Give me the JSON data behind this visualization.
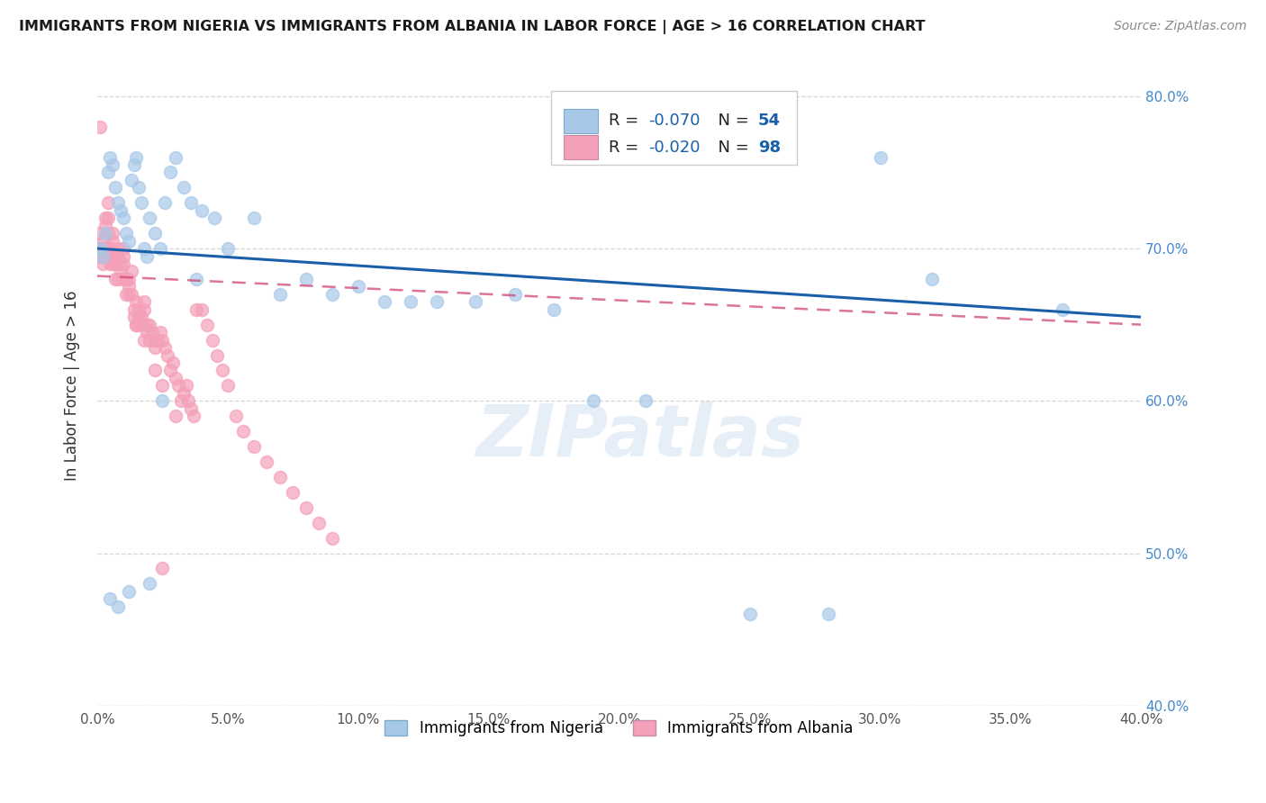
{
  "title": "IMMIGRANTS FROM NIGERIA VS IMMIGRANTS FROM ALBANIA IN LABOR FORCE | AGE > 16 CORRELATION CHART",
  "source_text": "Source: ZipAtlas.com",
  "ylabel": "In Labor Force | Age > 16",
  "xlim": [
    0.0,
    0.4
  ],
  "ylim": [
    0.4,
    0.82
  ],
  "xticks": [
    0.0,
    0.05,
    0.1,
    0.15,
    0.2,
    0.25,
    0.3,
    0.35,
    0.4
  ],
  "yticks": [
    0.4,
    0.5,
    0.6,
    0.7,
    0.8
  ],
  "ytick_labels_right": [
    "40.0%",
    "50.0%",
    "60.0%",
    "70.0%",
    "80.0%"
  ],
  "nigeria_color": "#a8c8e8",
  "albania_color": "#f4a0b8",
  "nigeria_R": -0.07,
  "nigeria_N": 54,
  "albania_R": -0.02,
  "albania_N": 98,
  "nigeria_line_color": "#1a5faa",
  "albania_line_color": "#d04878",
  "watermark_text": "ZIPatlas",
  "nigeria_line_y0": 0.7,
  "nigeria_line_y1": 0.655,
  "albania_line_y0": 0.682,
  "albania_line_y1": 0.65,
  "nigeria_x": [
    0.001,
    0.002,
    0.003,
    0.004,
    0.005,
    0.006,
    0.007,
    0.008,
    0.009,
    0.01,
    0.011,
    0.012,
    0.013,
    0.014,
    0.015,
    0.016,
    0.017,
    0.018,
    0.019,
    0.02,
    0.022,
    0.024,
    0.026,
    0.028,
    0.03,
    0.033,
    0.036,
    0.04,
    0.045,
    0.05,
    0.06,
    0.07,
    0.08,
    0.09,
    0.1,
    0.11,
    0.12,
    0.13,
    0.145,
    0.16,
    0.175,
    0.19,
    0.21,
    0.25,
    0.28,
    0.3,
    0.32,
    0.37,
    0.005,
    0.008,
    0.012,
    0.02,
    0.025,
    0.038
  ],
  "nigeria_y": [
    0.7,
    0.695,
    0.71,
    0.75,
    0.76,
    0.755,
    0.74,
    0.73,
    0.725,
    0.72,
    0.71,
    0.705,
    0.745,
    0.755,
    0.76,
    0.74,
    0.73,
    0.7,
    0.695,
    0.72,
    0.71,
    0.7,
    0.73,
    0.75,
    0.76,
    0.74,
    0.73,
    0.725,
    0.72,
    0.7,
    0.72,
    0.67,
    0.68,
    0.67,
    0.675,
    0.665,
    0.665,
    0.665,
    0.665,
    0.67,
    0.66,
    0.6,
    0.6,
    0.46,
    0.46,
    0.76,
    0.68,
    0.66,
    0.47,
    0.465,
    0.475,
    0.48,
    0.6,
    0.68
  ],
  "albania_x": [
    0.001,
    0.001,
    0.001,
    0.002,
    0.002,
    0.002,
    0.002,
    0.003,
    0.003,
    0.003,
    0.003,
    0.004,
    0.004,
    0.004,
    0.005,
    0.005,
    0.005,
    0.006,
    0.006,
    0.006,
    0.007,
    0.007,
    0.007,
    0.008,
    0.008,
    0.008,
    0.009,
    0.009,
    0.01,
    0.01,
    0.01,
    0.011,
    0.011,
    0.012,
    0.012,
    0.013,
    0.013,
    0.014,
    0.014,
    0.015,
    0.015,
    0.016,
    0.016,
    0.017,
    0.017,
    0.018,
    0.018,
    0.019,
    0.019,
    0.02,
    0.02,
    0.021,
    0.022,
    0.022,
    0.023,
    0.024,
    0.025,
    0.026,
    0.027,
    0.028,
    0.029,
    0.03,
    0.031,
    0.032,
    0.033,
    0.034,
    0.035,
    0.036,
    0.037,
    0.038,
    0.04,
    0.042,
    0.044,
    0.046,
    0.048,
    0.05,
    0.053,
    0.056,
    0.06,
    0.065,
    0.07,
    0.075,
    0.08,
    0.085,
    0.09,
    0.01,
    0.012,
    0.015,
    0.018,
    0.022,
    0.025,
    0.03,
    0.001,
    0.002,
    0.003,
    0.004,
    0.005,
    0.025
  ],
  "albania_y": [
    0.7,
    0.71,
    0.695,
    0.7,
    0.695,
    0.69,
    0.705,
    0.72,
    0.715,
    0.7,
    0.695,
    0.72,
    0.73,
    0.71,
    0.7,
    0.695,
    0.7,
    0.69,
    0.705,
    0.71,
    0.68,
    0.69,
    0.695,
    0.7,
    0.695,
    0.68,
    0.685,
    0.69,
    0.7,
    0.69,
    0.695,
    0.68,
    0.67,
    0.675,
    0.68,
    0.685,
    0.67,
    0.655,
    0.66,
    0.665,
    0.65,
    0.655,
    0.66,
    0.65,
    0.655,
    0.66,
    0.665,
    0.65,
    0.645,
    0.64,
    0.65,
    0.645,
    0.64,
    0.635,
    0.64,
    0.645,
    0.64,
    0.635,
    0.63,
    0.62,
    0.625,
    0.615,
    0.61,
    0.6,
    0.605,
    0.61,
    0.6,
    0.595,
    0.59,
    0.66,
    0.66,
    0.65,
    0.64,
    0.63,
    0.62,
    0.61,
    0.59,
    0.58,
    0.57,
    0.56,
    0.55,
    0.54,
    0.53,
    0.52,
    0.51,
    0.68,
    0.67,
    0.65,
    0.64,
    0.62,
    0.61,
    0.59,
    0.78,
    0.7,
    0.7,
    0.695,
    0.69,
    0.49
  ]
}
